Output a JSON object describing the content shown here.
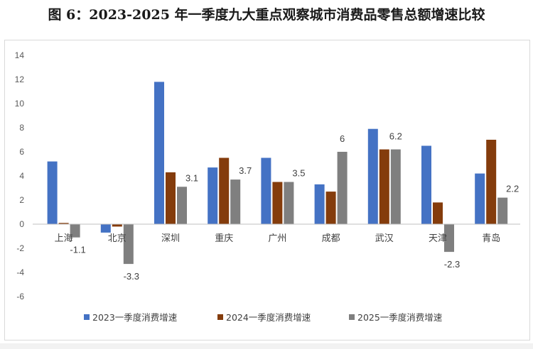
{
  "title": "图 6：2023-2025 年一季度九大重点观察城市消费品零售总额增速比较",
  "chart_data": {
    "type": "bar",
    "categories": [
      "上海",
      "北京",
      "深圳",
      "重庆",
      "广州",
      "成都",
      "武汉",
      "天津",
      "青岛"
    ],
    "series": [
      {
        "name": "2023一季度消费增速",
        "color": "#4472c4",
        "values": [
          5.2,
          -0.7,
          11.8,
          4.7,
          5.5,
          3.3,
          7.9,
          6.5,
          4.2
        ]
      },
      {
        "name": "2024一季度消费增速",
        "color": "#843c0c",
        "values": [
          0.1,
          -0.2,
          4.3,
          5.5,
          3.5,
          2.7,
          6.2,
          1.8,
          7.0
        ]
      },
      {
        "name": "2025一季度消费增速",
        "color": "#7f7f7f",
        "values": [
          -1.1,
          -3.3,
          3.1,
          3.7,
          3.5,
          6.0,
          6.2,
          -2.3,
          2.2
        ]
      }
    ],
    "data_labels_2025": [
      "-1.1",
      "-3.3",
      "3.1",
      "3.7",
      "3.5",
      "6",
      "6.2",
      "-2.3",
      "2.2"
    ],
    "yticks": [
      "14",
      "12",
      "10",
      "8",
      "6",
      "4",
      "2",
      "0",
      "-2",
      "-4",
      "-6"
    ],
    "ylim": [
      -6,
      14
    ],
    "grid": false,
    "legend": "bottom"
  }
}
